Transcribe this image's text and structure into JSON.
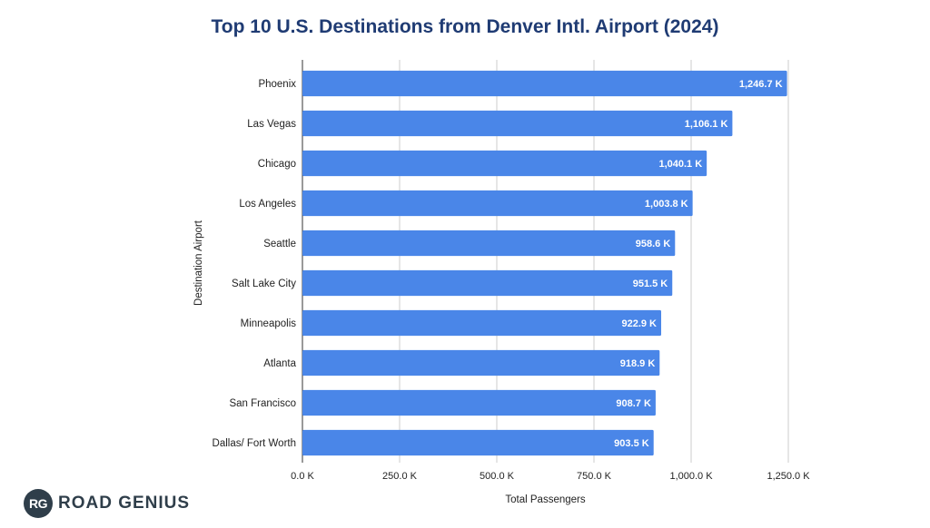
{
  "chart_data": {
    "type": "bar",
    "orientation": "horizontal",
    "title": "Top 10 U.S. Destinations from Denver Intl. Airport (2024)",
    "xlabel": "Total Passengers",
    "ylabel": "Destination Airport",
    "categories": [
      "Phoenix",
      "Las Vegas",
      "Chicago",
      "Los Angeles",
      "Seattle",
      "Salt Lake City",
      "Minneapolis",
      "Atlanta",
      "San Francisco",
      "Dallas/ Fort Worth"
    ],
    "values": [
      1246.7,
      1106.1,
      1040.1,
      1003.8,
      958.6,
      951.5,
      922.9,
      918.9,
      908.7,
      903.5
    ],
    "value_labels": [
      "1,246.7 K",
      "1,106.1 K",
      "1,040.1 K",
      "1,003.8 K",
      "958.6 K",
      "951.5 K",
      "922.9 K",
      "918.9 K",
      "908.7 K",
      "903.5 K"
    ],
    "xlim": [
      0,
      1250
    ],
    "x_ticks": [
      0,
      250,
      500,
      750,
      1000,
      1250
    ],
    "x_tick_labels": [
      "0.0 K",
      "250.0 K",
      "500.0 K",
      "750.0 K",
      "1,000.0 K",
      "1,250.0 K"
    ],
    "grid": true,
    "bar_color": "#4a86e8"
  },
  "logo": {
    "badge": "RG",
    "text": "ROAD GENIUS"
  }
}
